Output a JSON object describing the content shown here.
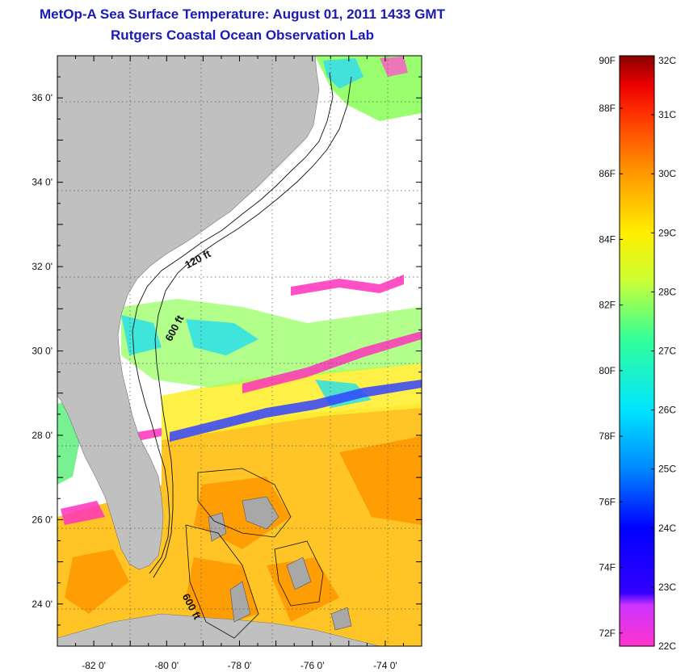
{
  "header": {
    "title": "MetOp-A Sea Surface Temperature:  August 01, 2011 1433 GMT",
    "subtitle": "Rutgers Coastal Ocean Observation Lab"
  },
  "map": {
    "lon_range": [
      -83,
      -73
    ],
    "lat_range": [
      23,
      37
    ],
    "lon_ticks": [
      {
        "value": -82,
        "label": "-82 0'"
      },
      {
        "value": -80,
        "label": "-80 0'"
      },
      {
        "value": -78,
        "label": "-78 0'"
      },
      {
        "value": -76,
        "label": "-76 0'"
      },
      {
        "value": -74,
        "label": "-74 0'"
      }
    ],
    "lat_ticks": [
      {
        "value": 36,
        "label": "36 0'"
      },
      {
        "value": 34,
        "label": "34 0'"
      },
      {
        "value": 32,
        "label": "32 0'"
      },
      {
        "value": 30,
        "label": "30 0'"
      },
      {
        "value": 28,
        "label": "28 0'"
      },
      {
        "value": 26,
        "label": "26 0'"
      },
      {
        "value": 24,
        "label": "24 0'"
      }
    ],
    "contour_labels": [
      {
        "text": "120 ft",
        "lon": -79.1,
        "lat": 32.1,
        "rotate": -28
      },
      {
        "text": "600 ft",
        "lon": -79.7,
        "lat": 30.5,
        "rotate": -62
      },
      {
        "text": "600 ft",
        "lon": -79.4,
        "lat": 23.9,
        "rotate": 62
      }
    ],
    "land_color": "#c0c0c0",
    "cloud_color": "#ffffff",
    "grid": true
  },
  "colorbar": {
    "fahrenheit_labels": [
      "90F",
      "88F",
      "86F",
      "84F",
      "82F",
      "80F",
      "78F",
      "76F",
      "74F",
      "72F"
    ],
    "celsius_labels": [
      "32C",
      "31C",
      "30C",
      "29C",
      "28C",
      "27C",
      "26C",
      "25C",
      "24C",
      "23C",
      "22C"
    ],
    "range_c": [
      22,
      32
    ],
    "colors": [
      "#ff33cc",
      "#9900ff",
      "#0000ff",
      "#0088ff",
      "#00e5ff",
      "#33ff99",
      "#ccff33",
      "#ffee00",
      "#ff9900",
      "#ff3300",
      "#ee0000",
      "#880000"
    ]
  }
}
